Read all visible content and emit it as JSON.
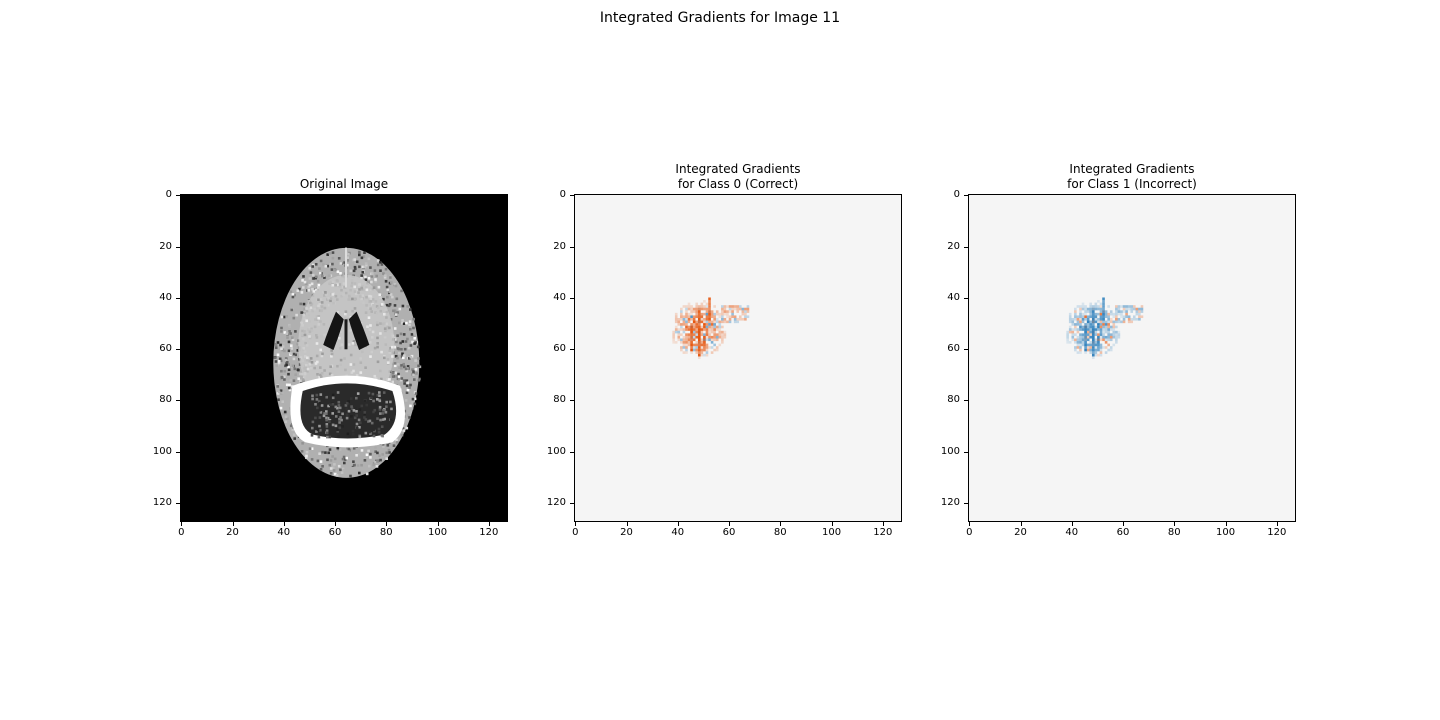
{
  "figure": {
    "title": "Integrated Gradients for Image 11"
  },
  "panels": [
    {
      "id": "original",
      "title": "Original Image",
      "colormap": "gray",
      "xticks": [
        "0",
        "20",
        "40",
        "60",
        "80",
        "100",
        "120"
      ],
      "yticks": [
        "0",
        "20",
        "40",
        "60",
        "80",
        "100",
        "120"
      ]
    },
    {
      "id": "class0",
      "title": "Integrated Gradients\n for Class 0 (Correct)",
      "colormap": "diverging",
      "dominant_color": "#d7301f",
      "xticks": [
        "0",
        "20",
        "40",
        "60",
        "80",
        "100",
        "120"
      ],
      "yticks": [
        "0",
        "20",
        "40",
        "60",
        "80",
        "100",
        "120"
      ]
    },
    {
      "id": "class1",
      "title": "Integrated Gradients\n for Class 1 (Incorrect)",
      "colormap": "diverging",
      "dominant_color": "#08519c",
      "xticks": [
        "0",
        "20",
        "40",
        "60",
        "80",
        "100",
        "120"
      ],
      "yticks": [
        "0",
        "20",
        "40",
        "60",
        "80",
        "100",
        "120"
      ]
    }
  ],
  "colors": {
    "background_heatmap": "#f5f5f5",
    "positive": "#e6550d",
    "negative": "#3182bd"
  }
}
